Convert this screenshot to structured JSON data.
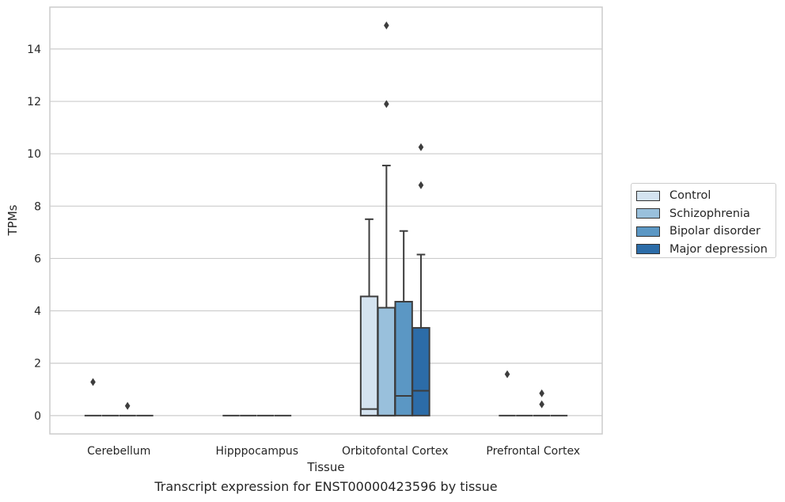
{
  "chart_data": {
    "type": "box",
    "xlabel": "Tissue",
    "ylabel": "TPMs",
    "caption": "Transcript expression for ENST00000423596 by tissue",
    "categories": [
      "Cerebellum",
      "Hipppocampus",
      "Orbitofontal Cortex",
      "Prefrontal Cortex"
    ],
    "ylim": [
      -0.7,
      15.6
    ],
    "yticks": [
      "0",
      "2",
      "4",
      "6",
      "8",
      "10",
      "12",
      "14"
    ],
    "grid": "horizontal",
    "legend_position": "right",
    "series": [
      {
        "name": "Control",
        "color": "#d4e3f0",
        "boxes": [
          {
            "q1": 0,
            "median": 0,
            "q3": 0,
            "whisker_low": 0,
            "whisker_high": 0,
            "outliers": [
              1.28
            ]
          },
          {
            "q1": 0,
            "median": 0,
            "q3": 0,
            "whisker_low": 0,
            "whisker_high": 0,
            "outliers": []
          },
          {
            "q1": 0,
            "median": 0.25,
            "q3": 4.55,
            "whisker_low": 0,
            "whisker_high": 7.5,
            "outliers": []
          },
          {
            "q1": 0,
            "median": 0,
            "q3": 0,
            "whisker_low": 0,
            "whisker_high": 0,
            "outliers": [
              1.58
            ]
          }
        ]
      },
      {
        "name": "Schizophrenia",
        "color": "#99c0dc",
        "boxes": [
          {
            "q1": 0,
            "median": 0,
            "q3": 0,
            "whisker_low": 0,
            "whisker_high": 0,
            "outliers": []
          },
          {
            "q1": 0,
            "median": 0,
            "q3": 0,
            "whisker_low": 0,
            "whisker_high": 0,
            "outliers": []
          },
          {
            "q1": 0,
            "median": 0,
            "q3": 4.12,
            "whisker_low": 0,
            "whisker_high": 9.55,
            "outliers": [
              11.9,
              14.9
            ]
          },
          {
            "q1": 0,
            "median": 0,
            "q3": 0,
            "whisker_low": 0,
            "whisker_high": 0,
            "outliers": []
          }
        ]
      },
      {
        "name": "Bipolar disorder",
        "color": "#5b97c4",
        "boxes": [
          {
            "q1": 0,
            "median": 0,
            "q3": 0,
            "whisker_low": 0,
            "whisker_high": 0,
            "outliers": [
              0.37
            ]
          },
          {
            "q1": 0,
            "median": 0,
            "q3": 0,
            "whisker_low": 0,
            "whisker_high": 0,
            "outliers": []
          },
          {
            "q1": 0,
            "median": 0.75,
            "q3": 4.35,
            "whisker_low": 0,
            "whisker_high": 7.05,
            "outliers": []
          },
          {
            "q1": 0,
            "median": 0,
            "q3": 0,
            "whisker_low": 0,
            "whisker_high": 0,
            "outliers": [
              0.85,
              0.43
            ]
          }
        ]
      },
      {
        "name": "Major depression",
        "color": "#2c6ca8",
        "boxes": [
          {
            "q1": 0,
            "median": 0,
            "q3": 0,
            "whisker_low": 0,
            "whisker_high": 0,
            "outliers": []
          },
          {
            "q1": 0,
            "median": 0,
            "q3": 0,
            "whisker_low": 0,
            "whisker_high": 0,
            "outliers": []
          },
          {
            "q1": 0,
            "median": 0.95,
            "q3": 3.35,
            "whisker_low": 0,
            "whisker_high": 6.15,
            "outliers": [
              8.8,
              10.25
            ]
          },
          {
            "q1": 0,
            "median": 0,
            "q3": 0,
            "whisker_low": 0,
            "whisker_high": 0,
            "outliers": []
          }
        ]
      }
    ]
  }
}
